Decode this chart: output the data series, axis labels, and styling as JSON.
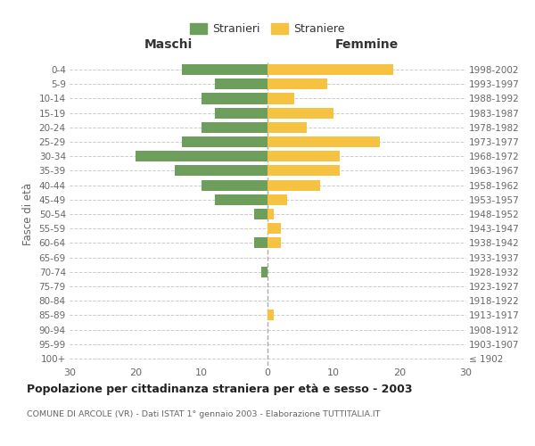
{
  "age_groups": [
    "100+",
    "95-99",
    "90-94",
    "85-89",
    "80-84",
    "75-79",
    "70-74",
    "65-69",
    "60-64",
    "55-59",
    "50-54",
    "45-49",
    "40-44",
    "35-39",
    "30-34",
    "25-29",
    "20-24",
    "15-19",
    "10-14",
    "5-9",
    "0-4"
  ],
  "birth_years": [
    "≤ 1902",
    "1903-1907",
    "1908-1912",
    "1913-1917",
    "1918-1922",
    "1923-1927",
    "1928-1932",
    "1933-1937",
    "1938-1942",
    "1943-1947",
    "1948-1952",
    "1953-1957",
    "1958-1962",
    "1963-1967",
    "1968-1972",
    "1973-1977",
    "1978-1982",
    "1983-1987",
    "1988-1992",
    "1993-1997",
    "1998-2002"
  ],
  "males": [
    0,
    0,
    0,
    0,
    0,
    0,
    1,
    0,
    2,
    0,
    2,
    8,
    10,
    14,
    20,
    13,
    10,
    8,
    10,
    8,
    13
  ],
  "females": [
    0,
    0,
    0,
    1,
    0,
    0,
    0,
    0,
    2,
    2,
    1,
    3,
    8,
    11,
    11,
    17,
    6,
    10,
    4,
    9,
    19
  ],
  "male_color": "#6d9e5b",
  "female_color": "#f5c242",
  "male_label": "Stranieri",
  "female_label": "Straniere",
  "title": "Popolazione per cittadinanza straniera per età e sesso - 2003",
  "subtitle": "COMUNE DI ARCOLE (VR) - Dati ISTAT 1° gennaio 2003 - Elaborazione TUTTITALIA.IT",
  "xlabel_left": "Maschi",
  "xlabel_right": "Femmine",
  "ylabel_left": "Fasce di età",
  "xlim": 30,
  "bg_color": "#ffffff",
  "grid_color": "#cccccc"
}
